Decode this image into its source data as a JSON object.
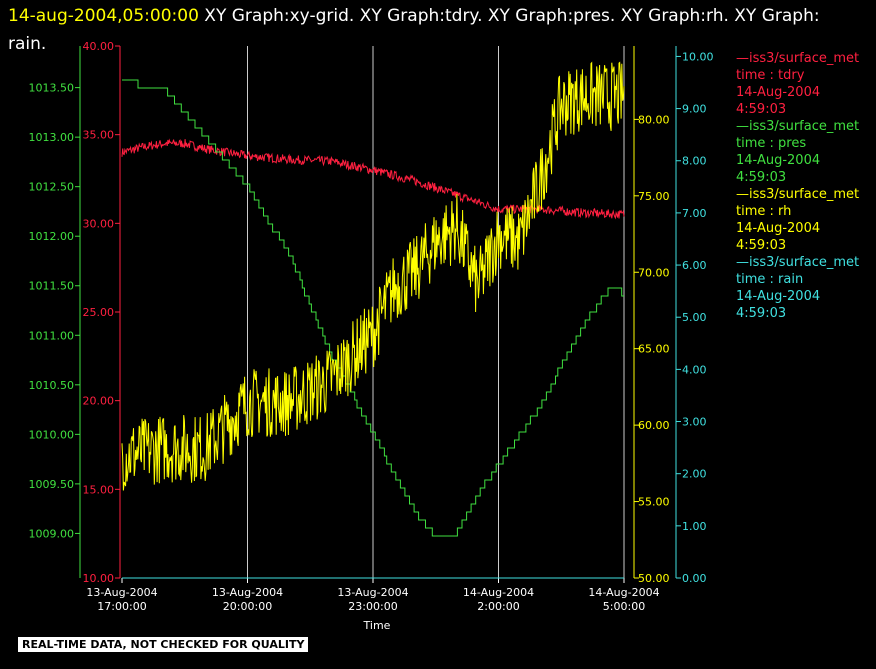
{
  "header": {
    "timestamp": "14-aug-2004,05:00:00",
    "title_rest": "  XY Graph:xy-grid.  XY Graph:tdry.  XY Graph:pres.  XY Graph:rh.  XY Graph:",
    "title_line2": "rain."
  },
  "colors": {
    "background": "#000000",
    "grid": "#ffffff",
    "tdry": "#ff2040",
    "pres": "#40e040",
    "rh": "#ffff00",
    "rain": "#40e0e0"
  },
  "legend": [
    {
      "series": "—iss3/surface_met",
      "var": "time : tdry",
      "date": "14-Aug-2004",
      "time": "4:59:03",
      "color": "#ff2040"
    },
    {
      "series": "—iss3/surface_met",
      "var": "time : pres",
      "date": "14-Aug-2004",
      "time": "4:59:03",
      "color": "#40e040"
    },
    {
      "series": "—iss3/surface_met",
      "var": "time : rh",
      "date": "14-Aug-2004",
      "time": "4:59:03",
      "color": "#ffff00"
    },
    {
      "series": "—iss3/surface_met",
      "var": "time : rain",
      "date": "14-Aug-2004",
      "time": "4:59:03",
      "color": "#40e0e0"
    }
  ],
  "footer_note": "REAL-TIME DATA, NOT CHECKED FOR QUALITY",
  "chart_data": {
    "type": "line",
    "xlabel": "Time",
    "x_range_hours": [
      17,
      29
    ],
    "x_ticks": [
      {
        "hour": 17,
        "date": "13-Aug-2004",
        "time": "17:00:00"
      },
      {
        "hour": 20,
        "date": "13-Aug-2004",
        "time": "20:00:00"
      },
      {
        "hour": 23,
        "date": "13-Aug-2004",
        "time": "23:00:00"
      },
      {
        "hour": 26,
        "date": "14-Aug-2004",
        "time": "2:00:00"
      },
      {
        "hour": 29,
        "date": "14-Aug-2004",
        "time": "5:00:00"
      }
    ],
    "grid": true,
    "axes": {
      "tdry": {
        "range": [
          10,
          40
        ],
        "ticks": [
          "10.00",
          "15.00",
          "20.00",
          "25.00",
          "30.00",
          "35.00",
          "40.00"
        ],
        "color": "#ff2040"
      },
      "pres": {
        "range": [
          1008.55,
          1013.92
        ],
        "ticks": [
          "1009.00",
          "1009.50",
          "1010.00",
          "1010.50",
          "1011.00",
          "1011.50",
          "1012.00",
          "1012.50",
          "1013.00",
          "1013.50"
        ],
        "color": "#40e040"
      },
      "rh": {
        "range": [
          50,
          84.8
        ],
        "ticks": [
          "50.00",
          "55.00",
          "60.00",
          "65.00",
          "70.00",
          "75.00",
          "80.00"
        ],
        "color": "#ffff00"
      },
      "rain": {
        "range": [
          0,
          10.2
        ],
        "ticks": [
          "0.00",
          "1.00",
          "2.00",
          "3.00",
          "4.00",
          "5.00",
          "6.00",
          "7.00",
          "8.00",
          "9.00",
          "10.00"
        ],
        "color": "#40e0e0"
      }
    },
    "series": [
      {
        "name": "time : tdry",
        "axis": "tdry",
        "noise": 0.25,
        "x": [
          17.0,
          17.5,
          18.0,
          18.5,
          19.0,
          20.0,
          21.0,
          22.0,
          23.0,
          24.0,
          25.0,
          26.0,
          27.0,
          28.0,
          29.0
        ],
        "y": [
          34.0,
          34.3,
          34.5,
          34.5,
          34.2,
          33.8,
          33.6,
          33.5,
          33.0,
          32.4,
          31.6,
          30.8,
          30.8,
          30.6,
          30.5
        ]
      },
      {
        "name": "time : pres",
        "axis": "pres",
        "noise": 0,
        "step": true,
        "x": [
          17.0,
          17.2,
          17.5,
          18.0,
          19.0,
          19.5,
          20.0,
          21.0,
          22.0,
          23.0,
          24.0,
          24.5,
          25.0,
          25.5,
          26.0,
          27.0,
          28.0,
          28.7,
          29.0
        ],
        "y": [
          1013.58,
          1013.58,
          1013.5,
          1013.5,
          1013.0,
          1012.75,
          1012.5,
          1011.8,
          1010.8,
          1010.0,
          1009.2,
          1008.95,
          1009.0,
          1009.4,
          1009.7,
          1010.3,
          1011.1,
          1011.5,
          1011.42
        ]
      },
      {
        "name": "time : rh",
        "axis": "rh",
        "noise": 2.3,
        "x": [
          17.0,
          18.0,
          19.0,
          20.0,
          21.0,
          22.0,
          23.0,
          23.5,
          24.0,
          24.5,
          25.0,
          25.5,
          26.0,
          26.5,
          27.0,
          27.5,
          28.0,
          28.5,
          29.0
        ],
        "y": [
          58.0,
          58.5,
          58.5,
          61.5,
          61.5,
          63.0,
          66.0,
          69.0,
          70.0,
          72.0,
          73.0,
          69.0,
          72.5,
          72.0,
          76.0,
          81.0,
          81.5,
          81.5,
          81.5
        ]
      },
      {
        "name": "time : rain",
        "axis": "rain",
        "noise": 0,
        "x": [
          17.0,
          29.0
        ],
        "y": [
          0.0,
          0.0
        ]
      }
    ]
  }
}
